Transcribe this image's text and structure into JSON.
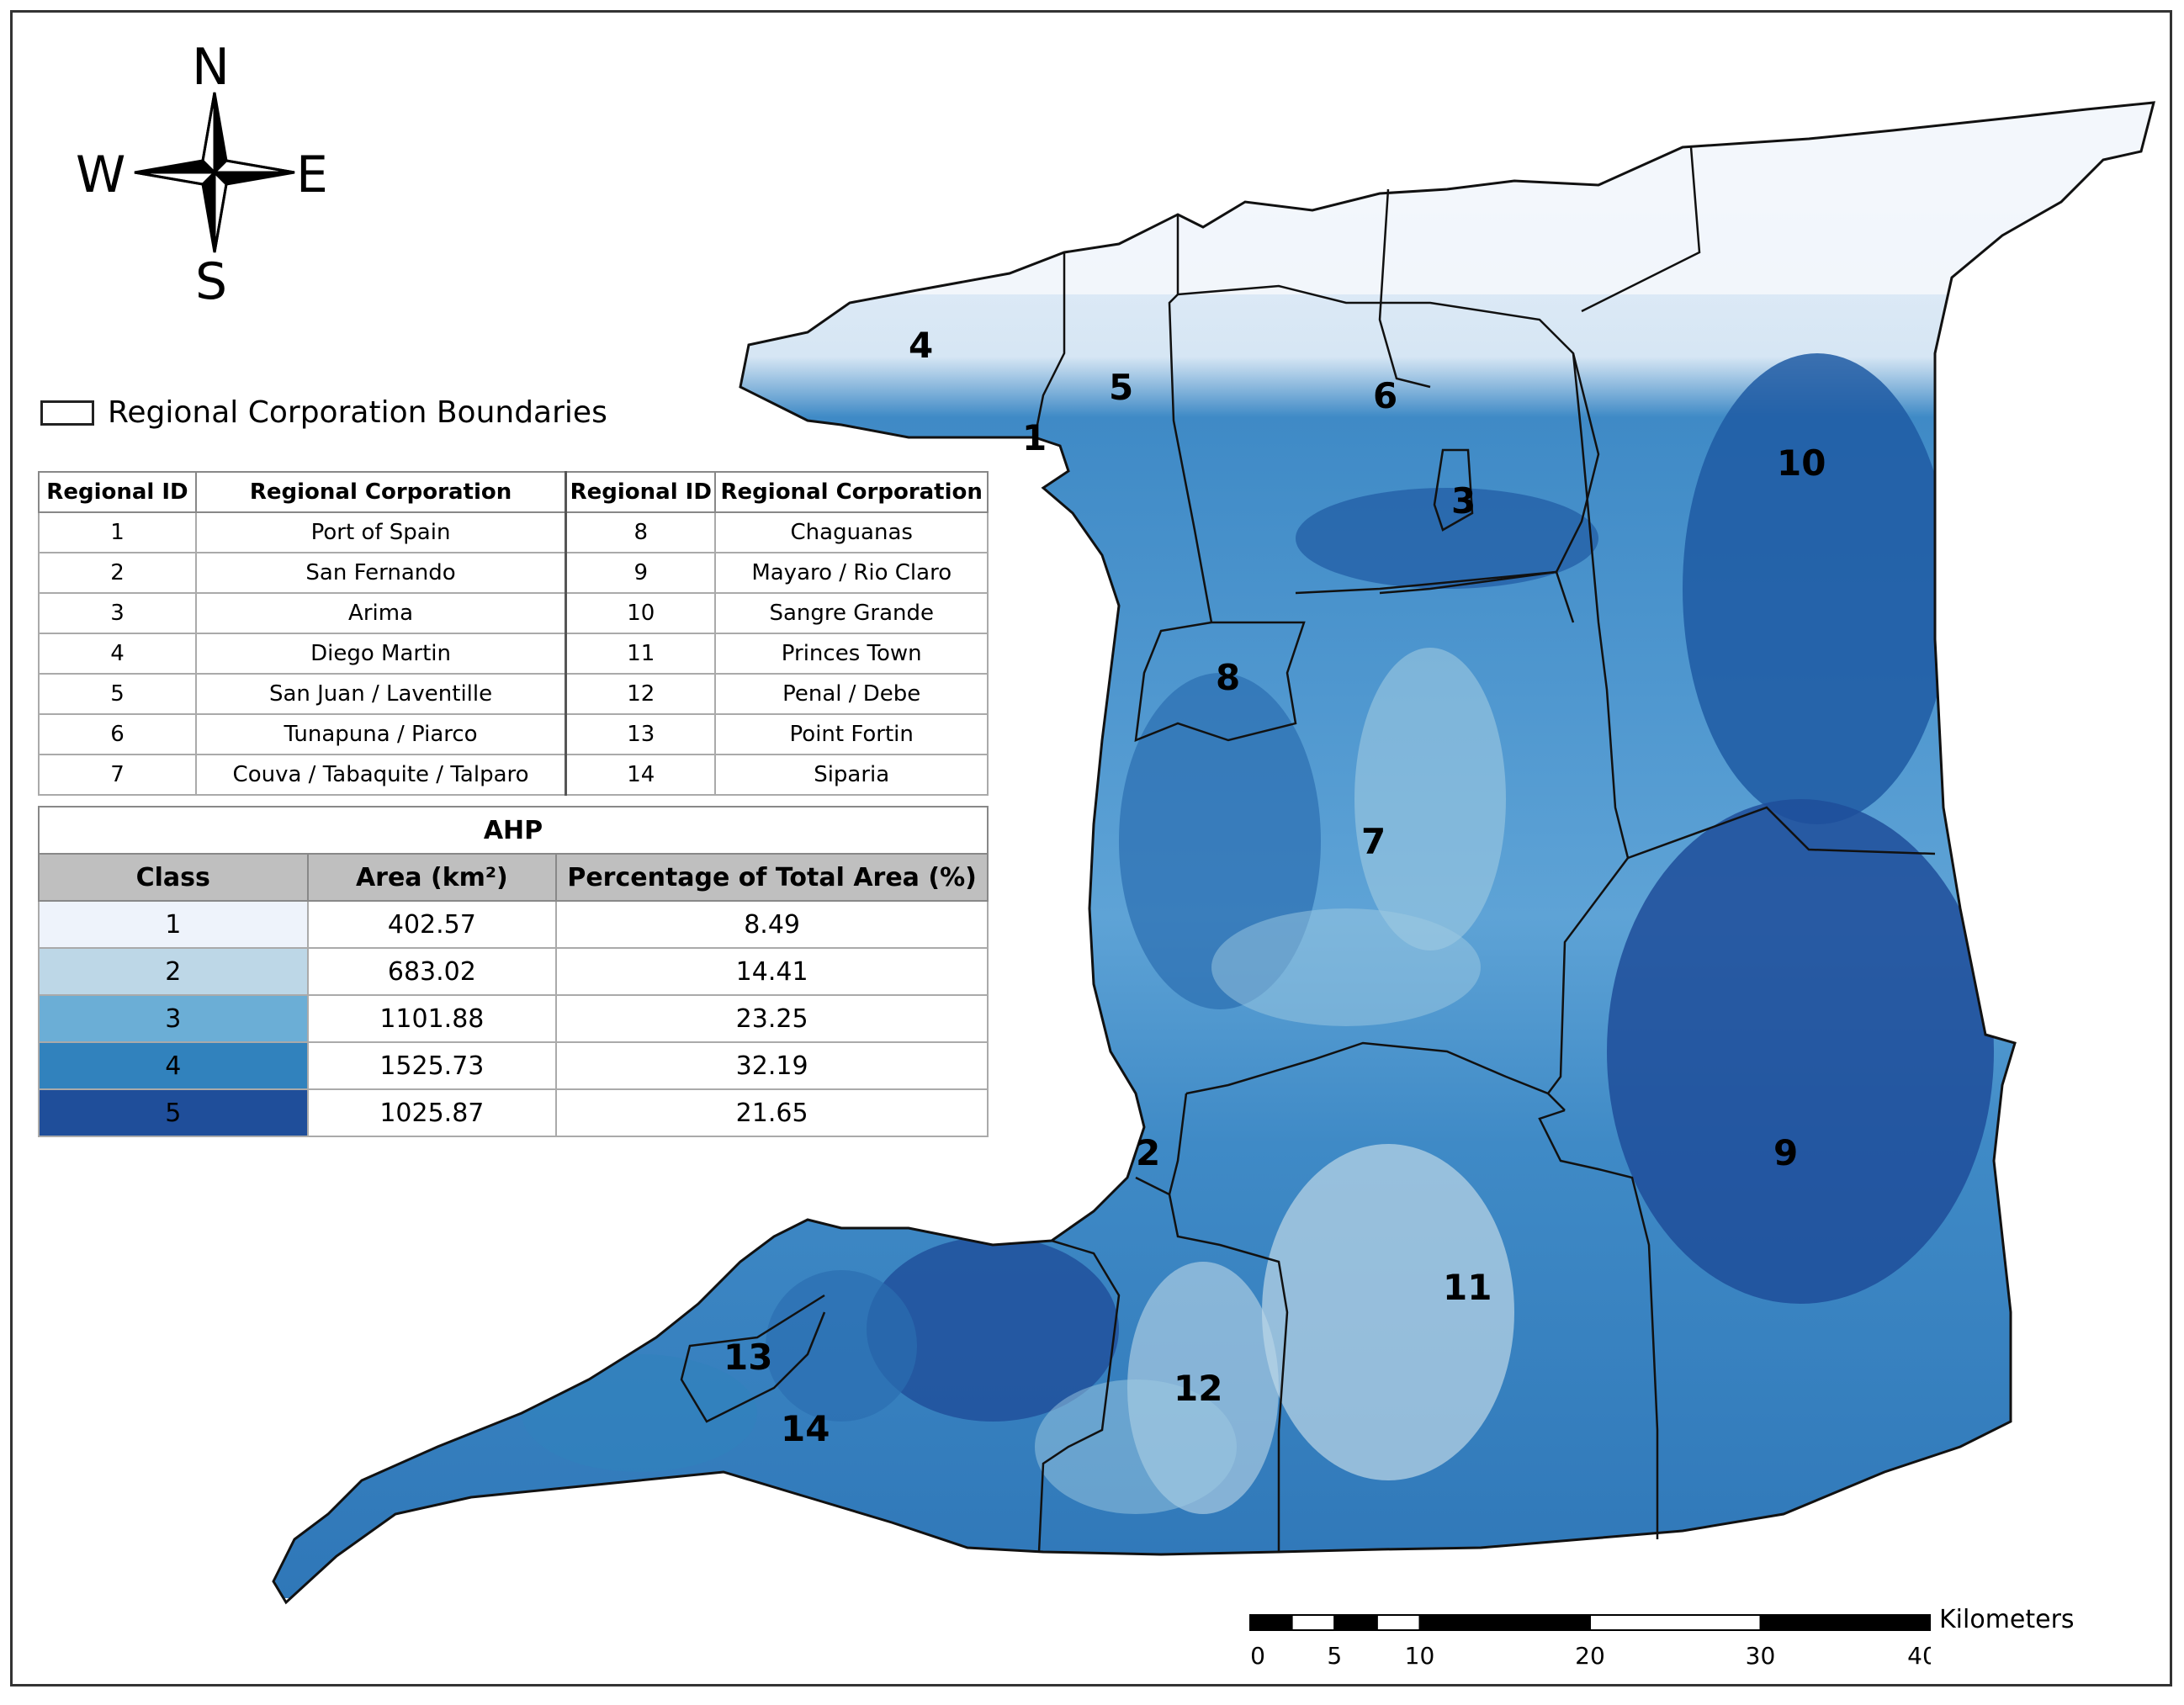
{
  "compass": {
    "n": "N",
    "s": "S",
    "w": "W",
    "e": "E"
  },
  "legend": {
    "boundary_label": "Regional Corporation Boundaries"
  },
  "region_table": {
    "headers": [
      "Regional ID",
      "Regional Corporation",
      "Regional ID",
      "Regional Corporation"
    ],
    "rows": [
      [
        "1",
        "Port of Spain",
        "8",
        "Chaguanas"
      ],
      [
        "2",
        "San Fernando",
        "9",
        "Mayaro / Rio Claro"
      ],
      [
        "3",
        "Arima",
        "10",
        "Sangre Grande"
      ],
      [
        "4",
        "Diego Martin",
        "11",
        "Princes Town"
      ],
      [
        "5",
        "San Juan / Laventille",
        "12",
        "Penal / Debe"
      ],
      [
        "6",
        "Tunapuna / Piarco",
        "13",
        "Point Fortin"
      ],
      [
        "7",
        "Couva / Tabaquite / Talparo",
        "14",
        "Siparia"
      ]
    ]
  },
  "ahp_table": {
    "title": "AHP",
    "headers": [
      "Class",
      "Area (km²)",
      "Percentage of Total Area (%)"
    ],
    "rows": [
      {
        "class": "1",
        "area": "402.57",
        "pct": "8.49",
        "color": "#eef3fb"
      },
      {
        "class": "2",
        "area": "683.02",
        "pct": "14.41",
        "color": "#bdd7e7"
      },
      {
        "class": "3",
        "area": "1101.88",
        "pct": "23.25",
        "color": "#6baed6"
      },
      {
        "class": "4",
        "area": "1525.73",
        "pct": "32.19",
        "color": "#3182bd"
      },
      {
        "class": "5",
        "area": "1025.87",
        "pct": "21.65",
        "color": "#1f4e9a"
      }
    ]
  },
  "map_labels": [
    "1",
    "2",
    "3",
    "4",
    "5",
    "6",
    "7",
    "8",
    "9",
    "10",
    "11",
    "12",
    "13",
    "14"
  ],
  "scale_bar": {
    "ticks": [
      "0",
      "5",
      "10",
      "20",
      "30",
      "40"
    ],
    "units": "Kilometers"
  }
}
